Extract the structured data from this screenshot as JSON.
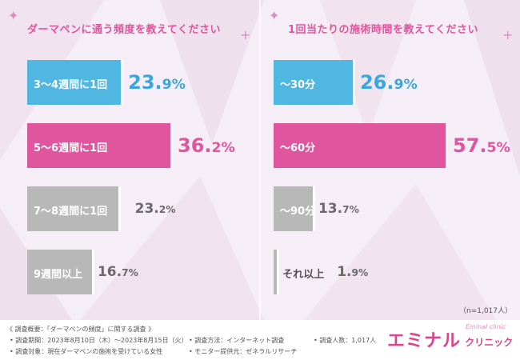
{
  "colors": {
    "blue": "#4fb7e2",
    "pink": "#e0569e",
    "gray": "#b8b8b8",
    "pinktext": "#e0569e",
    "bluetext": "#3aa7d8",
    "graytext": "#6a6a6a"
  },
  "chart_data": [
    {
      "type": "bar",
      "title": "ダーマペンに通う頻度を教えてください",
      "categories": [
        "3〜4週間に1回",
        "5〜6週間に1回",
        "7〜8週間に1回",
        "9週間以上"
      ],
      "values": [
        23.9,
        36.2,
        23.2,
        16.7
      ],
      "value_labels": [
        [
          "23.",
          "9%"
        ],
        [
          "36.",
          "2%"
        ],
        [
          "23.",
          "2%"
        ],
        [
          "16.",
          "7%"
        ]
      ],
      "bar_colors": [
        "blue",
        "pink",
        "gray",
        "gray"
      ],
      "text_colors": [
        "bluetext",
        "pinktext",
        "graytext",
        "graytext"
      ]
    },
    {
      "type": "bar",
      "title": "1回当たりの施術時間を教えてください",
      "categories": [
        "〜30分",
        "〜60分",
        "〜90分",
        "それ以上"
      ],
      "values": [
        26.9,
        57.5,
        13.7,
        1.9
      ],
      "value_labels": [
        [
          "26.",
          "9%"
        ],
        [
          "57.",
          "5%"
        ],
        [
          "13.",
          "7%"
        ],
        [
          "1.",
          "9%"
        ]
      ],
      "bar_colors": [
        "blue",
        "pink",
        "gray",
        "gray"
      ],
      "text_colors": [
        "bluetext",
        "pinktext",
        "graytext",
        "graytext"
      ]
    }
  ],
  "sample_note": "（n=1,017人）",
  "footer": {
    "heading": "《 調査概要：「ダーマペンの頻度」に関する調査 》",
    "period": "• 調査期間：2023年8月10日（木）〜2023年8月15日（火）",
    "target": "• 調査対象：現在ダーマペンの施術を受けている女性",
    "method": "• 調査方法：インターネット調査",
    "provider": "• モニター提供元：ゼネラルリサーチ",
    "count": "• 調査人数：1,017人"
  },
  "logo": {
    "main": "エミナル",
    "sub": "クリニック",
    "script": "Eminal clinic"
  }
}
